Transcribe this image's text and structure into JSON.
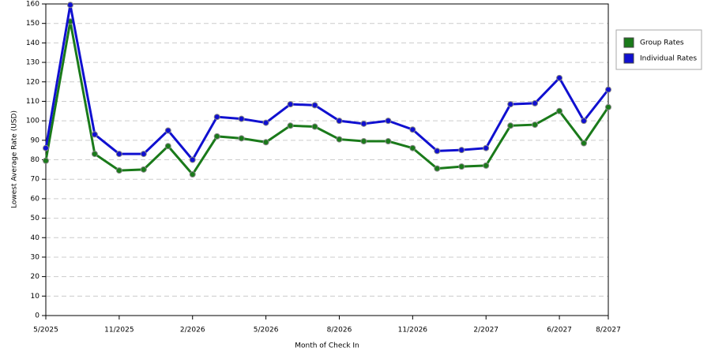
{
  "chart_data": {
    "type": "line",
    "x_label": "Month of Check In",
    "y_label": "Lowest Average Rate (USD)",
    "categories": [
      "5/2025",
      null,
      null,
      "11/2025",
      null,
      null,
      "2/2026",
      null,
      null,
      "5/2026",
      null,
      null,
      "8/2026",
      null,
      null,
      "11/2026",
      null,
      null,
      "2/2027",
      null,
      null,
      "6/2027",
      null,
      "8/2027"
    ],
    "series": [
      {
        "name": "Group Rates",
        "color": "#1a7a1a",
        "values": [
          79.5,
          151,
          83,
          74.5,
          75,
          87,
          72.5,
          92,
          91,
          89,
          97.5,
          97,
          90.5,
          89.5,
          89.5,
          86,
          75.5,
          76.5,
          77,
          97.5,
          98,
          105,
          88.5,
          107
        ]
      },
      {
        "name": "Individual Rates",
        "color": "#1010d0",
        "values": [
          86,
          159.5,
          93,
          83,
          83,
          95,
          80,
          102,
          101,
          99,
          108.5,
          108,
          100,
          98.5,
          100,
          95.5,
          84.5,
          85,
          86,
          108.5,
          109,
          122,
          100,
          116
        ]
      }
    ],
    "ylim": [
      0,
      160
    ],
    "yticks": [
      0,
      10,
      20,
      30,
      40,
      50,
      60,
      70,
      80,
      90,
      100,
      110,
      120,
      130,
      140,
      150,
      160
    ],
    "grid": true,
    "legend": "right"
  }
}
